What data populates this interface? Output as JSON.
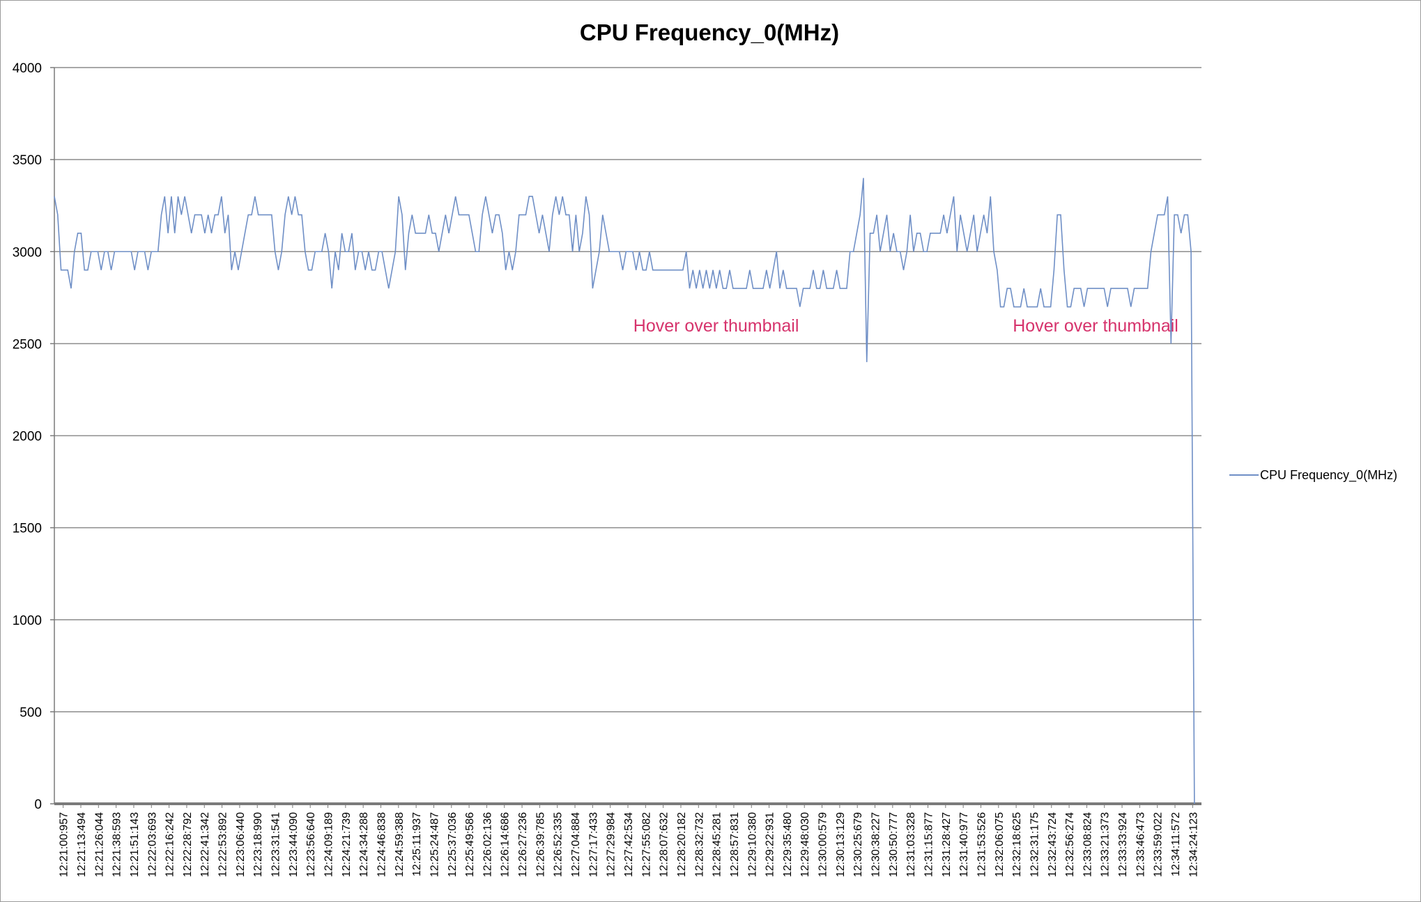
{
  "chart_data": {
    "type": "line",
    "title": "CPU Frequency_0(MHz)",
    "xlabel": "",
    "ylabel": "",
    "ylim": [
      0,
      4000
    ],
    "yticks": [
      0,
      500,
      1000,
      1500,
      2000,
      2500,
      3000,
      3500,
      4000
    ],
    "grid": true,
    "legend_position": "right",
    "line_color": "#6f8fc6",
    "annotation_color": "#d6336c",
    "xtick_labels": [
      "12:21:00:957",
      "12:21:13:494",
      "12:21:26:044",
      "12:21:38:593",
      "12:21:51:143",
      "12:22:03:693",
      "12:22:16:242",
      "12:22:28:792",
      "12:22:41:342",
      "12:22:53:892",
      "12:23:06:440",
      "12:23:18:990",
      "12:23:31:541",
      "12:23:44:090",
      "12:23:56:640",
      "12:24:09:189",
      "12:24:21:739",
      "12:24:34:288",
      "12:24:46:838",
      "12:24:59:388",
      "12:25:11:937",
      "12:25:24:487",
      "12:25:37:036",
      "12:25:49:586",
      "12:26:02:136",
      "12:26:14:686",
      "12:26:27:236",
      "12:26:39:785",
      "12:26:52:335",
      "12:27:04:884",
      "12:27:17:433",
      "12:27:29:984",
      "12:27:42:534",
      "12:27:55:082",
      "12:28:07:632",
      "12:28:20:182",
      "12:28:32:732",
      "12:28:45:281",
      "12:28:57:831",
      "12:29:10:380",
      "12:29:22:931",
      "12:29:35:480",
      "12:29:48:030",
      "12:30:00:579",
      "12:30:13:129",
      "12:30:25:679",
      "12:30:38:227",
      "12:30:50:777",
      "12:31:03:328",
      "12:31:15:877",
      "12:31:28:427",
      "12:31:40:977",
      "12:31:53:526",
      "12:32:06:075",
      "12:32:18:625",
      "12:32:31:175",
      "12:32:43:724",
      "12:32:56:274",
      "12:33:08:824",
      "12:33:21:373",
      "12:33:33:924",
      "12:33:46:473",
      "12:33:59:022",
      "12:34:11:572",
      "12:34:24:123"
    ],
    "series": [
      {
        "name": "CPU Frequency_0(MHz)",
        "x_start": 0,
        "x_end": 64.6,
        "values": [
          3300,
          3200,
          2900,
          2900,
          2900,
          2800,
          3000,
          3100,
          3100,
          2900,
          2900,
          3000,
          3000,
          3000,
          2900,
          3000,
          3000,
          2900,
          3000,
          3000,
          3000,
          3000,
          3000,
          3000,
          2900,
          3000,
          3000,
          3000,
          2900,
          3000,
          3000,
          3000,
          3200,
          3300,
          3100,
          3300,
          3100,
          3300,
          3200,
          3300,
          3200,
          3100,
          3200,
          3200,
          3200,
          3100,
          3200,
          3100,
          3200,
          3200,
          3300,
          3100,
          3200,
          2900,
          3000,
          2900,
          3000,
          3100,
          3200,
          3200,
          3300,
          3200,
          3200,
          3200,
          3200,
          3200,
          3000,
          2900,
          3000,
          3200,
          3300,
          3200,
          3300,
          3200,
          3200,
          3000,
          2900,
          2900,
          3000,
          3000,
          3000,
          3100,
          3000,
          2800,
          3000,
          2900,
          3100,
          3000,
          3000,
          3100,
          2900,
          3000,
          3000,
          2900,
          3000,
          2900,
          2900,
          3000,
          3000,
          2900,
          2800,
          2900,
          3000,
          3300,
          3200,
          2900,
          3100,
          3200,
          3100,
          3100,
          3100,
          3100,
          3200,
          3100,
          3100,
          3000,
          3100,
          3200,
          3100,
          3200,
          3300,
          3200,
          3200,
          3200,
          3200,
          3100,
          3000,
          3000,
          3200,
          3300,
          3200,
          3100,
          3200,
          3200,
          3100,
          2900,
          3000,
          2900,
          3000,
          3200,
          3200,
          3200,
          3300,
          3300,
          3200,
          3100,
          3200,
          3100,
          3000,
          3200,
          3300,
          3200,
          3300,
          3200,
          3200,
          3000,
          3200,
          3000,
          3100,
          3300,
          3200,
          2800,
          2900,
          3000,
          3200,
          3100,
          3000,
          3000,
          3000,
          3000,
          2900,
          3000,
          3000,
          3000,
          2900,
          3000,
          2900,
          2900,
          3000,
          2900,
          2900,
          2900,
          2900,
          2900,
          2900,
          2900,
          2900,
          2900,
          2900,
          3000,
          2800,
          2900,
          2800,
          2900,
          2800,
          2900,
          2800,
          2900,
          2800,
          2900,
          2800,
          2800,
          2900,
          2800,
          2800,
          2800,
          2800,
          2800,
          2900,
          2800,
          2800,
          2800,
          2800,
          2900,
          2800,
          2900,
          3000,
          2800,
          2900,
          2800,
          2800,
          2800,
          2800,
          2700,
          2800,
          2800,
          2800,
          2900,
          2800,
          2800,
          2900,
          2800,
          2800,
          2800,
          2900,
          2800,
          2800,
          2800,
          3000,
          3000,
          3100,
          3200,
          3400,
          2400,
          3100,
          3100,
          3200,
          3000,
          3100,
          3200,
          3000,
          3100,
          3000,
          3000,
          2900,
          3000,
          3200,
          3000,
          3100,
          3100,
          3000,
          3000,
          3100,
          3100,
          3100,
          3100,
          3200,
          3100,
          3200,
          3300,
          3000,
          3200,
          3100,
          3000,
          3100,
          3200,
          3000,
          3100,
          3200,
          3100,
          3300,
          3000,
          2900,
          2700,
          2700,
          2800,
          2800,
          2700,
          2700,
          2700,
          2800,
          2700,
          2700,
          2700,
          2700,
          2800,
          2700,
          2700,
          2700,
          2900,
          3200,
          3200,
          2900,
          2700,
          2700,
          2800,
          2800,
          2800,
          2700,
          2800,
          2800,
          2800,
          2800,
          2800,
          2800,
          2700,
          2800,
          2800,
          2800,
          2800,
          2800,
          2800,
          2700,
          2800,
          2800,
          2800,
          2800,
          2800,
          3000,
          3100,
          3200,
          3200,
          3200,
          3300,
          2500,
          3200,
          3200,
          3100,
          3200,
          3200,
          3000,
          0
        ]
      }
    ],
    "annotations": [
      {
        "text": "Hover over thumbnail",
        "x": 37.5,
        "y": 2600
      },
      {
        "text": "Hover over thumbnail",
        "x": 59.0,
        "y": 2600
      }
    ]
  }
}
